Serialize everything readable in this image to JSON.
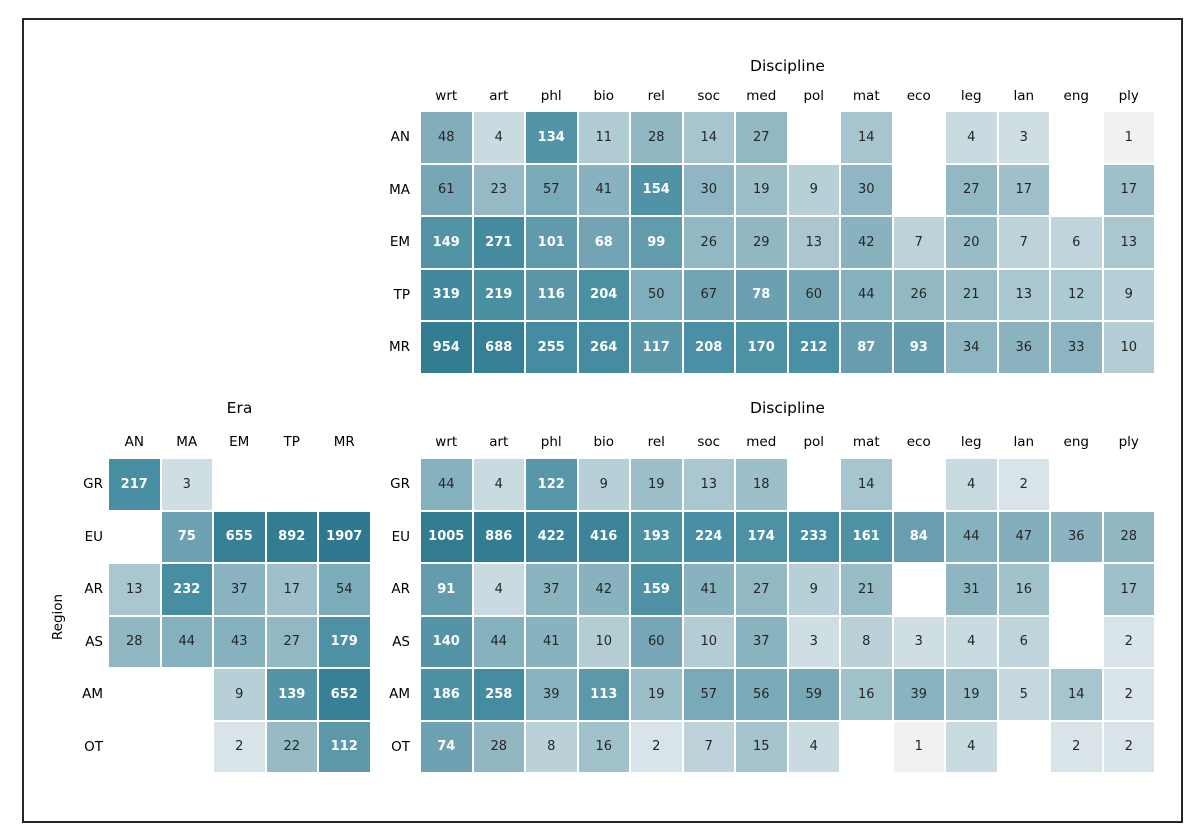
{
  "figure": {
    "background": "#ffffff",
    "border_color": "#262626"
  },
  "chart_data": [
    {
      "type": "heatmap",
      "name": "era_by_discipline",
      "title": "Discipline",
      "rows": [
        "AN",
        "MA",
        "EM",
        "TP",
        "MR"
      ],
      "cols": [
        "wrt",
        "art",
        "phl",
        "bio",
        "rel",
        "soc",
        "med",
        "pol",
        "mat",
        "eco",
        "leg",
        "lan",
        "eng",
        "ply"
      ],
      "values": [
        [
          48,
          4,
          134,
          11,
          28,
          14,
          27,
          null,
          14,
          null,
          4,
          3,
          null,
          1
        ],
        [
          61,
          23,
          57,
          41,
          154,
          30,
          19,
          9,
          30,
          null,
          27,
          17,
          null,
          17
        ],
        [
          149,
          271,
          101,
          68,
          99,
          26,
          29,
          13,
          42,
          7,
          20,
          7,
          6,
          13
        ],
        [
          319,
          219,
          116,
          204,
          50,
          67,
          78,
          60,
          44,
          26,
          21,
          13,
          12,
          9
        ],
        [
          954,
          688,
          255,
          264,
          117,
          208,
          170,
          212,
          87,
          93,
          34,
          36,
          33,
          10
        ]
      ]
    },
    {
      "type": "heatmap",
      "name": "region_by_era",
      "title": "Era",
      "ylabel": "Region",
      "rows": [
        "GR",
        "EU",
        "AR",
        "AS",
        "AM",
        "OT"
      ],
      "cols": [
        "AN",
        "MA",
        "EM",
        "TP",
        "MR"
      ],
      "values": [
        [
          217,
          3,
          null,
          null,
          null
        ],
        [
          null,
          75,
          655,
          892,
          1907
        ],
        [
          13,
          232,
          37,
          17,
          54
        ],
        [
          28,
          44,
          43,
          27,
          179
        ],
        [
          null,
          null,
          9,
          139,
          652
        ],
        [
          null,
          null,
          2,
          22,
          112
        ]
      ]
    },
    {
      "type": "heatmap",
      "name": "region_by_discipline",
      "title": "Discipline",
      "rows": [
        "GR",
        "EU",
        "AR",
        "AS",
        "AM",
        "OT"
      ],
      "cols": [
        "wrt",
        "art",
        "phl",
        "bio",
        "rel",
        "soc",
        "med",
        "pol",
        "mat",
        "eco",
        "leg",
        "lan",
        "eng",
        "ply"
      ],
      "values": [
        [
          44,
          4,
          122,
          9,
          19,
          13,
          18,
          null,
          14,
          null,
          4,
          2,
          null,
          null
        ],
        [
          1005,
          886,
          422,
          416,
          193,
          224,
          174,
          233,
          161,
          84,
          44,
          47,
          36,
          28
        ],
        [
          91,
          4,
          37,
          42,
          159,
          41,
          27,
          9,
          21,
          null,
          31,
          16,
          null,
          17
        ],
        [
          140,
          44,
          41,
          10,
          60,
          10,
          37,
          3,
          8,
          3,
          4,
          6,
          null,
          2
        ],
        [
          186,
          258,
          39,
          113,
          19,
          57,
          56,
          59,
          16,
          39,
          19,
          5,
          14,
          2
        ],
        [
          74,
          28,
          8,
          16,
          2,
          7,
          15,
          4,
          null,
          1,
          4,
          null,
          2,
          2
        ]
      ]
    }
  ],
  "style": {
    "scale": "log",
    "vmin": 1,
    "vmax": 1907,
    "white_text_min_value": 68,
    "dark_text_color": "#262626",
    "white_text_color": "#ffffff",
    "cell_gap_color": "#ffffff",
    "colormap_stops": [
      [
        0.0,
        "#f0f1f1"
      ],
      [
        0.1,
        "#d6e3e6"
      ],
      [
        0.2,
        "#c7d9df"
      ],
      [
        0.3,
        "#b5ced5"
      ],
      [
        0.4,
        "#98bcc6"
      ],
      [
        0.5,
        "#86b1be"
      ],
      [
        0.575,
        "#6ca0b0"
      ],
      [
        0.65,
        "#5494a7"
      ],
      [
        0.72,
        "#488ea2"
      ],
      [
        0.8,
        "#3d8499"
      ],
      [
        0.9,
        "#337d93"
      ],
      [
        1.0,
        "#2e798f"
      ]
    ]
  }
}
